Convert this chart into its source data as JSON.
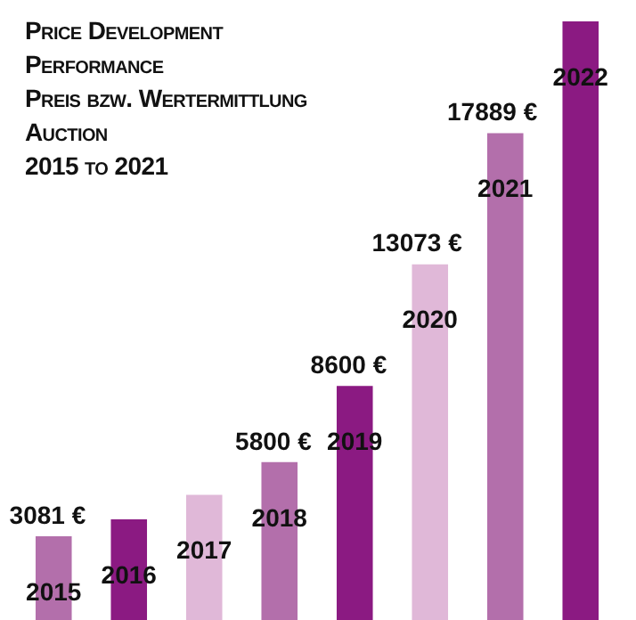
{
  "chart_data": {
    "type": "bar",
    "title": "Price Development Performance",
    "subtitle": "Preis bzw. Wertermittlung",
    "annotations": [
      "Auction",
      "2015 to 2021"
    ],
    "categories": [
      "2015",
      "2016",
      "2017",
      "2018",
      "2019",
      "2020",
      "2021",
      "2022"
    ],
    "values": [
      3081,
      3700,
      4600,
      5800,
      8600,
      13073,
      17889,
      22000
    ],
    "colors": [
      "#b36fab",
      "#8b1a82",
      "#e0b8d8",
      "#b36fab",
      "#8b1a82",
      "#e0b8d8",
      "#b36fab",
      "#8b1a82"
    ],
    "value_labels": [
      "3081 €",
      null,
      null,
      "5800 €",
      "8600 €",
      "13073 €",
      "17889 €",
      null
    ],
    "legend": false
  }
}
